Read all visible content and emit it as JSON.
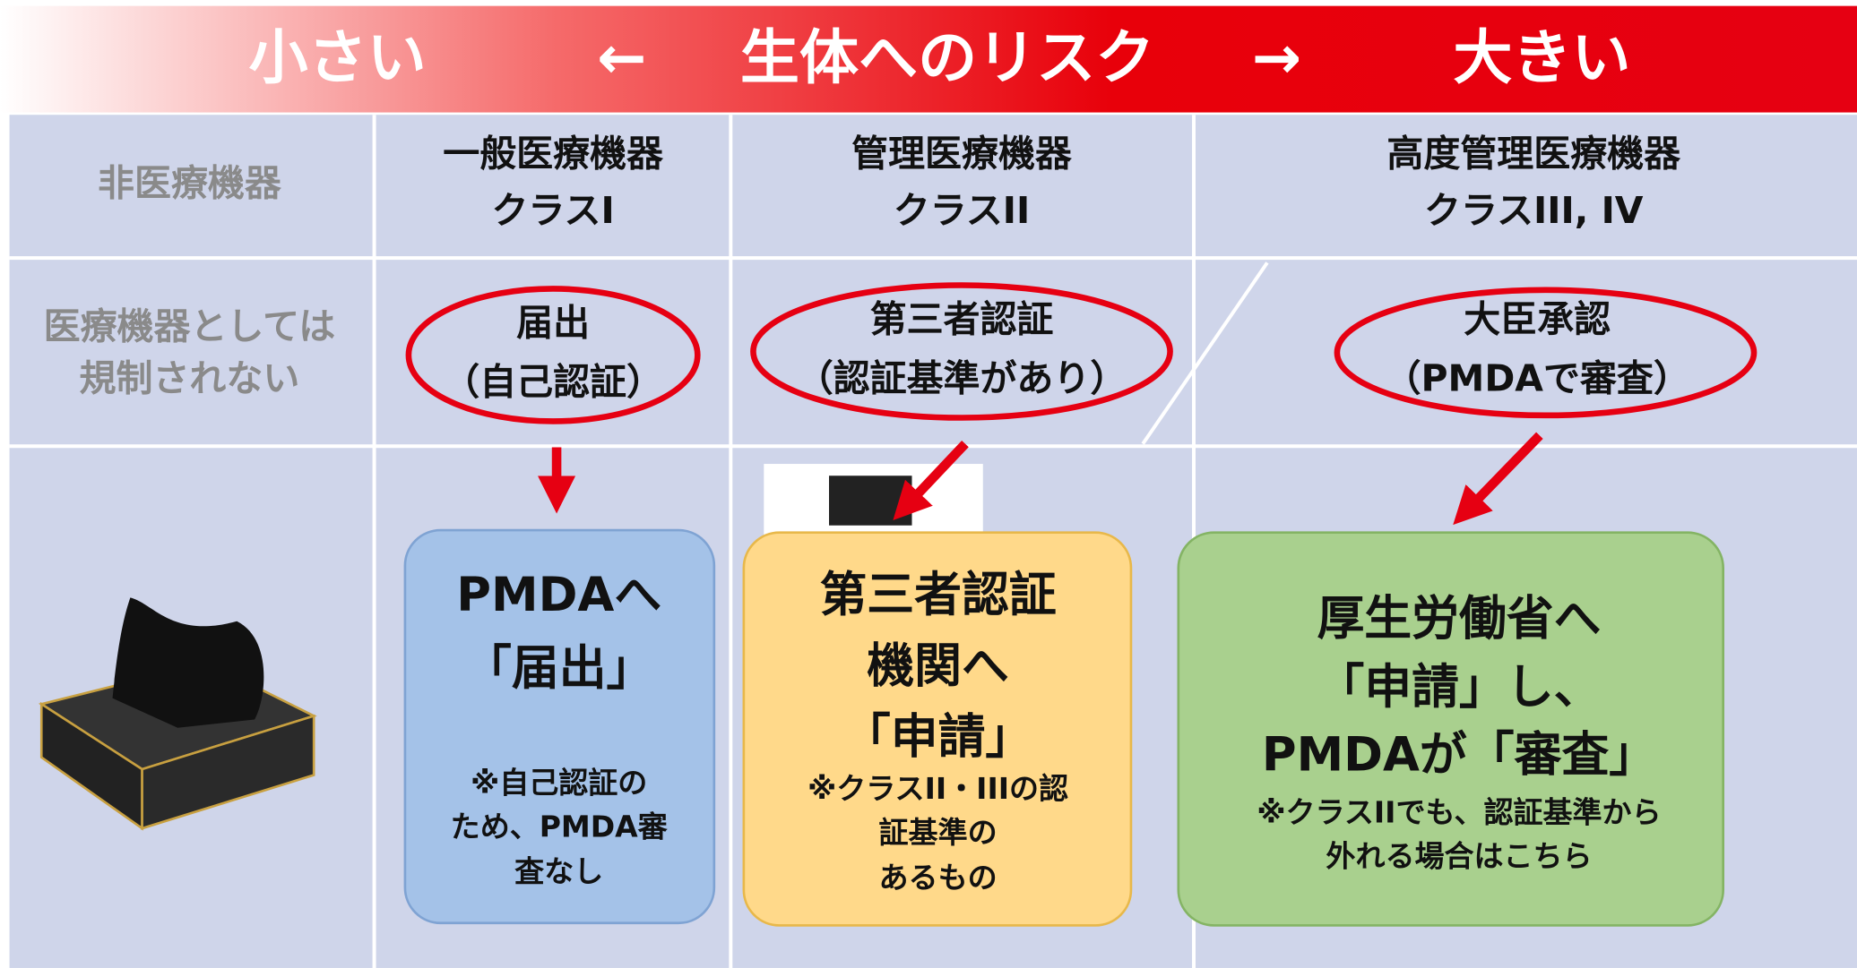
{
  "banner": {
    "left": "小さい",
    "arrow_left": "←",
    "center": "生体へのリスク",
    "arrow_right": "→",
    "right": "大きい"
  },
  "columns": [
    {
      "name": "非医療機器"
    },
    {
      "name": "一般医療機器",
      "class": "クラスI"
    },
    {
      "name": "管理医療機器",
      "class": "クラスII"
    },
    {
      "name": "高度管理医療機器",
      "class": "クラスIII, IV"
    }
  ],
  "regulation": [
    {
      "lines": [
        "医療機器としては",
        "規制されない"
      ]
    },
    {
      "title": "届出",
      "note": "（自己認証）"
    },
    {
      "title": "第三者認証",
      "note": "（認証基準があり）"
    },
    {
      "title": "大臣承認",
      "note": "（PMDAで審査）"
    }
  ],
  "procedures": [
    {
      "lines": [
        "PMDAへ",
        "「届出」"
      ],
      "notes": [
        "※自己認証の",
        "ため、PMDA審",
        "査なし"
      ]
    },
    {
      "lines": [
        "第三者認証",
        "機関へ",
        "「申請」"
      ],
      "notes": [
        "※クラスII・IIIの認",
        "証基準の",
        "あるもの"
      ]
    },
    {
      "lines": [
        "厚生労働省へ",
        "「申請」し、",
        "PMDAが「審査」"
      ],
      "notes": [
        "※クラスIIでも、認証基準から",
        "外れる場合はこちら"
      ]
    }
  ]
}
